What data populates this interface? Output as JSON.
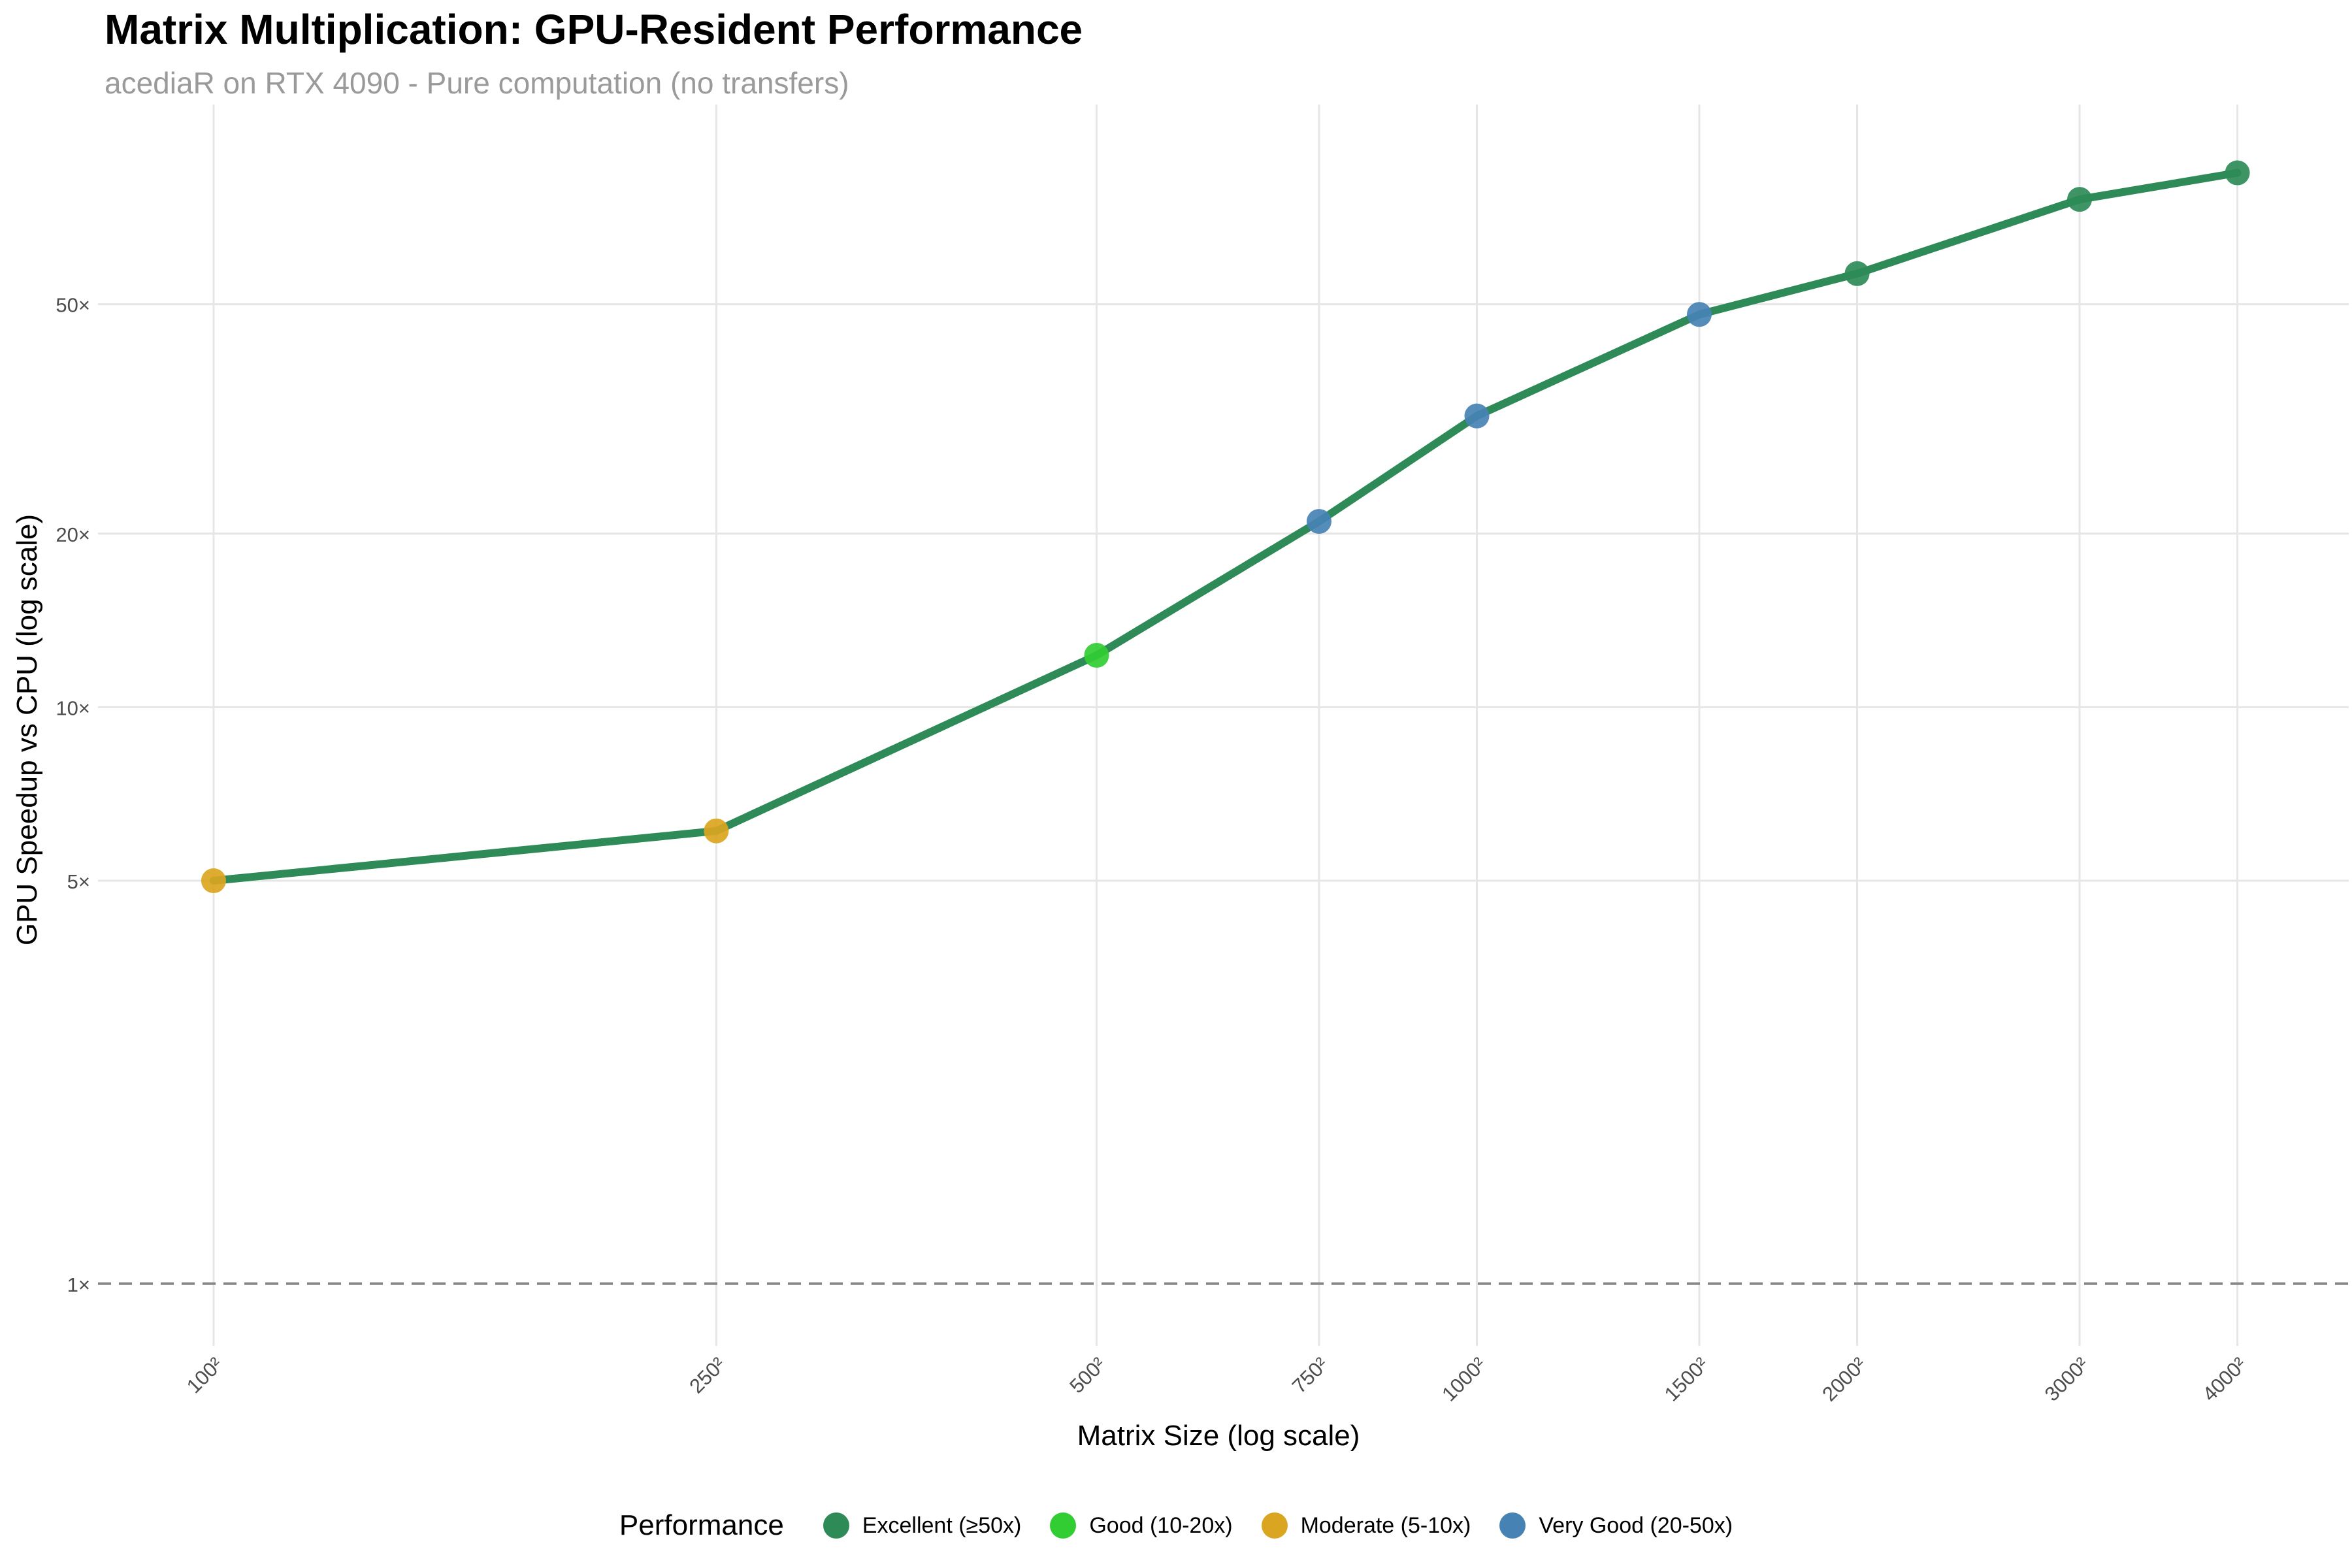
{
  "chart_data": {
    "type": "line",
    "title": "Matrix Multiplication: GPU-Resident Performance",
    "subtitle": "acediaR on RTX 4090 - Pure computation (no transfers)",
    "xlabel": "Matrix Size (log scale)",
    "ylabel": "GPU Speedup vs CPU (log scale)",
    "x_scale": "log",
    "y_scale": "log",
    "x_ticks": [
      100,
      250,
      500,
      750,
      1000,
      1500,
      2000,
      3000,
      4000
    ],
    "x_tick_labels": [
      "100²",
      "250²",
      "500²",
      "750²",
      "1000²",
      "1500²",
      "2000²",
      "3000²",
      "4000²"
    ],
    "y_ticks": [
      1,
      5,
      10,
      20,
      50
    ],
    "y_tick_labels": [
      "1×",
      "5×",
      "10×",
      "20×",
      "50×"
    ],
    "xlim": [
      81,
      4900
    ],
    "ylim": [
      0.78,
      111
    ],
    "grid": true,
    "line_color": "#2e8b57",
    "reference_line": {
      "y": 1,
      "style": "dashed",
      "color": "#888888"
    },
    "legend_title": "Performance",
    "legend_position": "bottom",
    "categories": [
      {
        "name": "Excellent (≥50x)",
        "color": "#2e8b57"
      },
      {
        "name": "Good (10-20x)",
        "color": "#32cd32"
      },
      {
        "name": "Moderate (5-10x)",
        "color": "#daa520"
      },
      {
        "name": "Very Good (20-50x)",
        "color": "#4682b4"
      }
    ],
    "points": [
      {
        "x": 100,
        "y": 5.0,
        "category": "Moderate (5-10x)"
      },
      {
        "x": 250,
        "y": 6.1,
        "category": "Moderate (5-10x)"
      },
      {
        "x": 500,
        "y": 12.3,
        "category": "Good (10-20x)"
      },
      {
        "x": 750,
        "y": 21.0,
        "category": "Very Good (20-50x)"
      },
      {
        "x": 1000,
        "y": 32.0,
        "category": "Very Good (20-50x)"
      },
      {
        "x": 1500,
        "y": 48.0,
        "category": "Very Good (20-50x)"
      },
      {
        "x": 2000,
        "y": 56.5,
        "category": "Excellent (≥50x)"
      },
      {
        "x": 3000,
        "y": 76.0,
        "category": "Excellent (≥50x)"
      },
      {
        "x": 4000,
        "y": 84.5,
        "category": "Excellent (≥50x)"
      }
    ]
  }
}
